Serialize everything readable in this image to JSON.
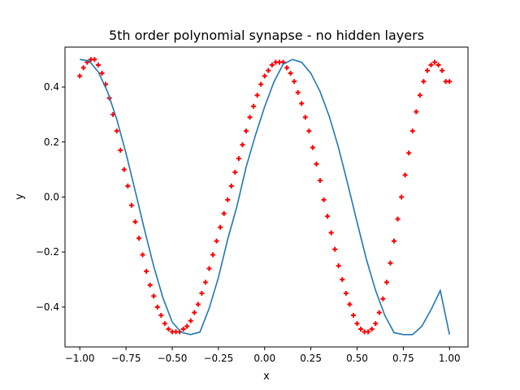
{
  "chart_data": {
    "type": "line",
    "title": "5th order polynomial synapse - no hidden layers",
    "xlabel": "x",
    "ylabel": "y",
    "xlim": [
      -1.08,
      1.1
    ],
    "ylim": [
      -0.545,
      0.545
    ],
    "x_ticks": [
      -1.0,
      -0.75,
      -0.5,
      -0.25,
      0.0,
      0.25,
      0.5,
      0.75,
      1.0
    ],
    "x_tick_labels": [
      "−1.00",
      "−0.75",
      "−0.50",
      "−0.25",
      "0.00",
      "0.25",
      "0.50",
      "0.75",
      "1.00"
    ],
    "y_ticks": [
      -0.4,
      -0.2,
      0.0,
      0.2,
      0.4
    ],
    "y_tick_labels": [
      "−0.4",
      "−0.2",
      "0.0",
      "0.2",
      "0.4"
    ],
    "grid": false,
    "legend": "none",
    "series": [
      {
        "kind": "line",
        "color": "#1f77b4",
        "x": [
          -1.0,
          -0.95,
          -0.9,
          -0.85,
          -0.8,
          -0.75,
          -0.7,
          -0.65,
          -0.6,
          -0.55,
          -0.5,
          -0.45,
          -0.4,
          -0.35,
          -0.3,
          -0.25,
          -0.2,
          -0.15,
          -0.1,
          -0.05,
          0.0,
          0.05,
          0.1,
          0.15,
          0.2,
          0.25,
          0.3,
          0.35,
          0.4,
          0.45,
          0.5,
          0.55,
          0.6,
          0.65,
          0.7,
          0.75,
          0.8,
          0.85,
          0.9,
          0.95,
          1.0
        ],
        "y": [
          0.5,
          0.495,
          0.455,
          0.383,
          0.283,
          0.159,
          0.021,
          -0.118,
          -0.252,
          -0.367,
          -0.455,
          -0.492,
          -0.5,
          -0.491,
          -0.404,
          -0.293,
          -0.154,
          -0.034,
          0.11,
          0.224,
          0.328,
          0.418,
          0.483,
          0.5,
          0.49,
          0.45,
          0.383,
          0.292,
          0.179,
          0.046,
          -0.092,
          -0.226,
          -0.339,
          -0.43,
          -0.493,
          -0.5,
          -0.5,
          -0.47,
          -0.41,
          -0.34,
          -0.5
        ]
      },
      {
        "kind": "scatter",
        "color": "#ff0000",
        "marker": "+",
        "x": [
          -1.0,
          -0.98,
          -0.96,
          -0.94,
          -0.92,
          -0.9,
          -0.88,
          -0.86,
          -0.84,
          -0.82,
          -0.8,
          -0.78,
          -0.76,
          -0.74,
          -0.72,
          -0.7,
          -0.68,
          -0.66,
          -0.64,
          -0.62,
          -0.6,
          -0.58,
          -0.56,
          -0.54,
          -0.52,
          -0.5,
          -0.48,
          -0.46,
          -0.44,
          -0.42,
          -0.4,
          -0.38,
          -0.36,
          -0.34,
          -0.32,
          -0.3,
          -0.28,
          -0.26,
          -0.24,
          -0.22,
          -0.2,
          -0.18,
          -0.16,
          -0.14,
          -0.12,
          -0.1,
          -0.08,
          -0.06,
          -0.04,
          -0.02,
          0.0,
          0.02,
          0.04,
          0.06,
          0.08,
          0.1,
          0.12,
          0.14,
          0.16,
          0.18,
          0.2,
          0.22,
          0.24,
          0.26,
          0.28,
          0.3,
          0.32,
          0.34,
          0.36,
          0.38,
          0.4,
          0.42,
          0.44,
          0.46,
          0.48,
          0.5,
          0.52,
          0.54,
          0.56,
          0.58,
          0.6,
          0.62,
          0.64,
          0.66,
          0.68,
          0.7,
          0.72,
          0.74,
          0.76,
          0.78,
          0.8,
          0.82,
          0.84,
          0.86,
          0.88,
          0.9,
          0.92,
          0.94,
          0.96,
          0.98,
          1.0
        ],
        "y": [
          0.44,
          0.47,
          0.49,
          0.5,
          0.5,
          0.48,
          0.45,
          0.41,
          0.36,
          0.3,
          0.24,
          0.17,
          0.1,
          0.04,
          -0.03,
          -0.09,
          -0.15,
          -0.21,
          -0.27,
          -0.32,
          -0.36,
          -0.4,
          -0.43,
          -0.46,
          -0.48,
          -0.49,
          -0.49,
          -0.49,
          -0.48,
          -0.47,
          -0.45,
          -0.42,
          -0.39,
          -0.35,
          -0.31,
          -0.26,
          -0.21,
          -0.16,
          -0.11,
          -0.06,
          -0.01,
          0.04,
          0.09,
          0.14,
          0.19,
          0.24,
          0.29,
          0.33,
          0.37,
          0.41,
          0.44,
          0.46,
          0.48,
          0.49,
          0.49,
          0.49,
          0.47,
          0.45,
          0.42,
          0.38,
          0.34,
          0.29,
          0.24,
          0.18,
          0.12,
          0.06,
          -0.01,
          -0.07,
          -0.13,
          -0.19,
          -0.25,
          -0.3,
          -0.35,
          -0.39,
          -0.43,
          -0.46,
          -0.48,
          -0.49,
          -0.49,
          -0.48,
          -0.46,
          -0.42,
          -0.37,
          -0.31,
          -0.24,
          -0.16,
          -0.08,
          0.0,
          0.08,
          0.16,
          0.24,
          0.31,
          0.37,
          0.42,
          0.46,
          0.48,
          0.49,
          0.48,
          0.46,
          0.42,
          0.42
        ]
      }
    ]
  }
}
